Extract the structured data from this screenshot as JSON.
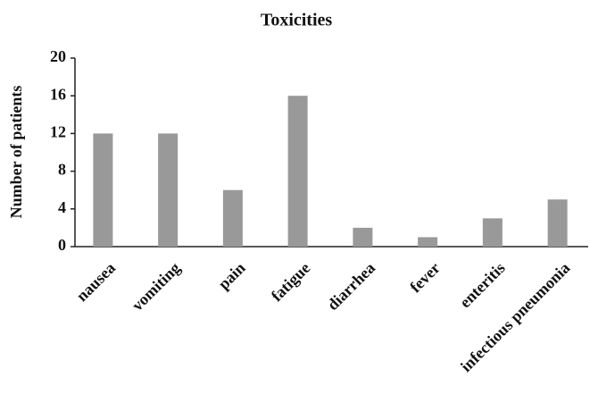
{
  "chart_data": {
    "type": "bar",
    "title": "Toxicities",
    "y_label": "Number of patients",
    "categories": [
      "nausea",
      "vomiting",
      "pain",
      "fatigue",
      "diarrhea",
      "fever",
      "enteritis",
      "infectious pneumonia"
    ],
    "values": [
      12,
      12,
      6,
      16,
      2,
      1,
      3,
      5
    ],
    "color": "#999999",
    "ylim": [
      0,
      20
    ],
    "yticks": [
      0,
      4,
      8,
      12,
      16,
      20
    ],
    "grid": false
  }
}
